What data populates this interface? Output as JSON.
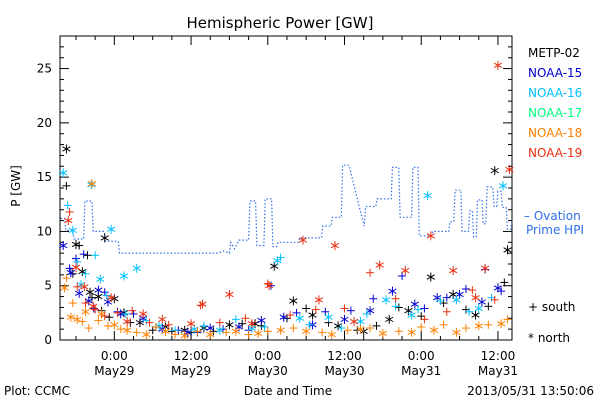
{
  "chart_data": {
    "type": "scatter",
    "title": "Hemispheric Power [GW]",
    "xlabel": "Date and Time",
    "ylabel": "P [GW]",
    "ylim": [
      0,
      28
    ],
    "xlim_hours": [
      -8.5,
      62.2
    ],
    "yticks": [
      0,
      5,
      10,
      15,
      20,
      25
    ],
    "xticks": [
      {
        "h": 0,
        "time": "0:00",
        "date": "May29"
      },
      {
        "h": 12,
        "time": "12:00",
        "date": "May29"
      },
      {
        "h": 24,
        "time": "0:00",
        "date": "May30"
      },
      {
        "h": 36,
        "time": "12:00",
        "date": "May30"
      },
      {
        "h": 48,
        "time": "0:00",
        "date": "May31"
      },
      {
        "h": 60,
        "time": "12:00",
        "date": "May31"
      }
    ],
    "grid": false,
    "legend_position": "right",
    "series": [
      {
        "name": "METP-02",
        "color": "#000000",
        "south": [
          [
            -7.5,
            14.2
          ],
          [
            -6.5,
            6.1
          ],
          [
            -5.5,
            8.7
          ],
          [
            -4.2,
            7.8
          ],
          [
            -3.5,
            3.9
          ],
          [
            -2.0,
            2.7
          ],
          [
            -0.8,
            2.1
          ],
          [
            2.5,
            1.6
          ],
          [
            6.0,
            0.9
          ],
          [
            9.0,
            0.8
          ],
          [
            12.0,
            0.7
          ],
          [
            15.5,
            0.8
          ],
          [
            20.0,
            1.5
          ],
          [
            23.0,
            1.3
          ],
          [
            27.0,
            2.0
          ],
          [
            30.0,
            2.9
          ],
          [
            33.5,
            1.6
          ],
          [
            38.0,
            0.9
          ],
          [
            41.0,
            1.3
          ],
          [
            44.5,
            3.0
          ],
          [
            48.0,
            2.2
          ],
          [
            51.5,
            3.4
          ],
          [
            55.0,
            2.8
          ],
          [
            58.5,
            3.1
          ],
          [
            61.0,
            5.3
          ]
        ],
        "north": [
          [
            -7.5,
            17.6
          ],
          [
            -6.0,
            8.8
          ],
          [
            -5.0,
            6.3
          ],
          [
            -3.8,
            4.4
          ],
          [
            -2.5,
            4.0
          ],
          [
            -1.5,
            9.4
          ],
          [
            0.0,
            3.8
          ],
          [
            1.5,
            2.5
          ],
          [
            4.0,
            1.6
          ],
          [
            8.0,
            1.2
          ],
          [
            11.0,
            0.9
          ],
          [
            14.0,
            1.1
          ],
          [
            18.0,
            1.4
          ],
          [
            22.0,
            1.5
          ],
          [
            25.0,
            6.8
          ],
          [
            28.0,
            3.6
          ],
          [
            31.0,
            2.3
          ],
          [
            35.0,
            1.3
          ],
          [
            39.0,
            0.8
          ],
          [
            43.0,
            1.9
          ],
          [
            46.0,
            2.7
          ],
          [
            49.5,
            5.8
          ],
          [
            53.0,
            4.2
          ],
          [
            56.5,
            2.3
          ],
          [
            59.5,
            15.6
          ],
          [
            61.5,
            8.3
          ]
        ]
      },
      {
        "name": "NOAA-15",
        "color": "#0000d0",
        "south": [
          [
            -7.0,
            6.6
          ],
          [
            -6.0,
            7.5
          ],
          [
            -4.8,
            7.9
          ],
          [
            -3.2,
            2.9
          ],
          [
            -1.5,
            4.4
          ],
          [
            0.5,
            2.6
          ],
          [
            3.0,
            2.4
          ],
          [
            6.5,
            1.2
          ],
          [
            10.0,
            0.9
          ],
          [
            13.0,
            0.7
          ],
          [
            17.0,
            1.0
          ],
          [
            21.0,
            0.9
          ],
          [
            24.5,
            5.0
          ],
          [
            28.5,
            2.5
          ],
          [
            33.0,
            2.6
          ],
          [
            37.0,
            2.7
          ],
          [
            40.5,
            3.8
          ],
          [
            45.0,
            5.9
          ],
          [
            48.5,
            2.9
          ],
          [
            52.0,
            3.9
          ],
          [
            55.0,
            4.7
          ],
          [
            58.0,
            6.5
          ],
          [
            60.5,
            4.5
          ]
        ],
        "north": [
          [
            -8.0,
            8.7
          ],
          [
            -6.8,
            6.2
          ],
          [
            -5.5,
            4.3
          ],
          [
            -4.0,
            3.6
          ],
          [
            -2.5,
            4.6
          ],
          [
            -1.0,
            3.5
          ],
          [
            1.0,
            2.4
          ],
          [
            4.5,
            2.0
          ],
          [
            7.5,
            1.0
          ],
          [
            11.5,
            0.7
          ],
          [
            15.0,
            1.1
          ],
          [
            19.5,
            1.2
          ],
          [
            23.0,
            1.8
          ],
          [
            26.5,
            2.1
          ],
          [
            31.0,
            1.4
          ],
          [
            36.0,
            1.9
          ],
          [
            40.0,
            2.7
          ],
          [
            43.5,
            4.5
          ],
          [
            47.0,
            3.3
          ],
          [
            50.5,
            3.9
          ],
          [
            54.0,
            4.2
          ],
          [
            57.5,
            3.5
          ],
          [
            60.0,
            4.8
          ]
        ]
      },
      {
        "name": "NOAA-16",
        "color": "#00c0ff",
        "south": [
          [
            -7.3,
            12.4
          ],
          [
            -5.8,
            7.2
          ],
          [
            -4.5,
            6.1
          ],
          [
            -3.0,
            7.8
          ],
          [
            -1.2,
            4.1
          ],
          [
            1.8,
            2.4
          ],
          [
            5.0,
            1.8
          ],
          [
            9.5,
            0.9
          ],
          [
            14.0,
            1.3
          ],
          [
            19.0,
            1.9
          ],
          [
            23.5,
            1.2
          ],
          [
            26.0,
            7.6
          ],
          [
            30.5,
            1.4
          ],
          [
            35.5,
            1.1
          ],
          [
            39.5,
            2.4
          ],
          [
            44.0,
            3.1
          ],
          [
            47.5,
            2.8
          ],
          [
            51.0,
            3.6
          ],
          [
            55.5,
            2.6
          ],
          [
            59.0,
            3.9
          ]
        ],
        "north": [
          [
            -8.0,
            15.4
          ],
          [
            -6.5,
            10.1
          ],
          [
            -5.2,
            5.1
          ],
          [
            -3.6,
            14.3
          ],
          [
            -2.2,
            5.6
          ],
          [
            -0.5,
            10.2
          ],
          [
            1.5,
            5.9
          ],
          [
            3.5,
            6.6
          ],
          [
            7.0,
            1.3
          ],
          [
            12.5,
            1.0
          ],
          [
            16.5,
            0.9
          ],
          [
            21.5,
            1.1
          ],
          [
            25.5,
            7.3
          ],
          [
            29.0,
            2.0
          ],
          [
            33.5,
            2.1
          ],
          [
            38.5,
            1.7
          ],
          [
            42.5,
            3.7
          ],
          [
            46.5,
            2.3
          ],
          [
            49.0,
            13.3
          ],
          [
            53.5,
            3.7
          ],
          [
            57.0,
            2.9
          ],
          [
            60.8,
            14.2
          ]
        ]
      },
      {
        "name": "NOAA-17",
        "color": "#00ff80",
        "south": [],
        "north": []
      },
      {
        "name": "NOAA-18",
        "color": "#ff8000",
        "south": [
          [
            -7.5,
            5.7
          ],
          [
            -6.5,
            3.4
          ],
          [
            -5.0,
            1.7
          ],
          [
            -4.0,
            1.1
          ],
          [
            -2.5,
            1.8
          ],
          [
            -1.0,
            1.3
          ],
          [
            1.0,
            1.0
          ],
          [
            3.5,
            0.7
          ],
          [
            6.5,
            1.2
          ],
          [
            9.5,
            0.5
          ],
          [
            13.0,
            0.8
          ],
          [
            17.5,
            0.7
          ],
          [
            21.0,
            0.5
          ],
          [
            24.0,
            0.8
          ],
          [
            28.0,
            1.1
          ],
          [
            32.5,
            0.7
          ],
          [
            36.5,
            0.9
          ],
          [
            40.0,
            1.1
          ],
          [
            44.5,
            0.8
          ],
          [
            48.0,
            1.2
          ],
          [
            51.5,
            1.4
          ],
          [
            55.0,
            1.1
          ],
          [
            58.5,
            1.4
          ],
          [
            61.5,
            1.9
          ]
        ],
        "north": [
          [
            -7.8,
            4.8
          ],
          [
            -6.8,
            2.1
          ],
          [
            -5.8,
            1.9
          ],
          [
            -4.5,
            2.6
          ],
          [
            -3.5,
            14.4
          ],
          [
            -2.0,
            2.4
          ],
          [
            0.0,
            1.4
          ],
          [
            2.0,
            0.9
          ],
          [
            5.0,
            0.5
          ],
          [
            8.0,
            0.8
          ],
          [
            11.0,
            0.4
          ],
          [
            15.0,
            0.5
          ],
          [
            19.0,
            0.8
          ],
          [
            22.5,
            0.6
          ],
          [
            26.0,
            0.9
          ],
          [
            30.0,
            0.8
          ],
          [
            34.0,
            0.5
          ],
          [
            38.5,
            1.0
          ],
          [
            42.0,
            0.6
          ],
          [
            46.5,
            0.7
          ],
          [
            50.0,
            0.9
          ],
          [
            53.5,
            0.7
          ],
          [
            57.0,
            1.3
          ],
          [
            60.5,
            1.5
          ]
        ]
      },
      {
        "name": "NOAA-19",
        "color": "#e83010",
        "south": [
          [
            -7.0,
            11.8
          ],
          [
            -5.8,
            4.9
          ],
          [
            -4.5,
            3.4
          ],
          [
            -3.0,
            2.8
          ],
          [
            -1.5,
            2.2
          ],
          [
            0.5,
            2.5
          ],
          [
            2.8,
            2.7
          ],
          [
            5.5,
            1.6
          ],
          [
            8.5,
            1.4
          ],
          [
            13.5,
            3.2
          ],
          [
            16.5,
            1.6
          ],
          [
            20.5,
            2.0
          ],
          [
            24.0,
            5.2
          ],
          [
            27.5,
            2.3
          ],
          [
            31.5,
            2.8
          ],
          [
            36.0,
            2.9
          ],
          [
            40.0,
            6.2
          ],
          [
            44.0,
            3.8
          ],
          [
            48.5,
            1.9
          ],
          [
            52.0,
            2.6
          ],
          [
            56.0,
            4.6
          ],
          [
            59.5,
            3.7
          ]
        ],
        "north": [
          [
            -7.2,
            11.0
          ],
          [
            -6.0,
            6.7
          ],
          [
            -4.7,
            4.9
          ],
          [
            -3.3,
            3.1
          ],
          [
            -0.5,
            3.9
          ],
          [
            2.0,
            1.7
          ],
          [
            4.5,
            2.4
          ],
          [
            7.5,
            1.9
          ],
          [
            12.0,
            1.5
          ],
          [
            13.8,
            3.3
          ],
          [
            18.0,
            4.2
          ],
          [
            21.5,
            1.5
          ],
          [
            24.2,
            5.0
          ],
          [
            29.5,
            9.2
          ],
          [
            32.0,
            3.7
          ],
          [
            34.5,
            8.7
          ],
          [
            37.5,
            1.7
          ],
          [
            41.5,
            6.9
          ],
          [
            45.5,
            6.4
          ],
          [
            49.5,
            9.6
          ],
          [
            53.0,
            6.4
          ],
          [
            56.5,
            3.9
          ],
          [
            58.0,
            6.6
          ],
          [
            60.0,
            25.3
          ],
          [
            61.8,
            15.7
          ]
        ]
      }
    ],
    "ovation": {
      "name": "Ovation Prime HPI",
      "legend_label_line1": "– Ovation",
      "legend_label_line2": "Prime HPI",
      "color": "#3070e8",
      "points": [
        [
          -8.4,
          11.2
        ],
        [
          -7.8,
          11.2
        ],
        [
          -7.6,
          10.1
        ],
        [
          -6.5,
          10.1
        ],
        [
          -6.3,
          9.3
        ],
        [
          -4.8,
          9.3
        ],
        [
          -4.6,
          12.8
        ],
        [
          -3.5,
          12.8
        ],
        [
          -3.3,
          10.0
        ],
        [
          -1.6,
          10.0
        ],
        [
          -1.4,
          9.1
        ],
        [
          0.6,
          9.1
        ],
        [
          0.8,
          8.0
        ],
        [
          13.5,
          8.0
        ],
        [
          16.2,
          8.0
        ],
        [
          17.1,
          8.2
        ],
        [
          18.0,
          8.0
        ],
        [
          18.2,
          9.0
        ],
        [
          18.8,
          8.4
        ],
        [
          19.5,
          9.2
        ],
        [
          21.0,
          9.2
        ],
        [
          21.2,
          12.8
        ],
        [
          22.1,
          12.8
        ],
        [
          22.3,
          8.7
        ],
        [
          23.4,
          8.7
        ],
        [
          23.6,
          13.0
        ],
        [
          24.6,
          13.0
        ],
        [
          24.8,
          8.6
        ],
        [
          25.4,
          8.6
        ],
        [
          25.6,
          9.0
        ],
        [
          28.8,
          9.0
        ],
        [
          29.0,
          9.4
        ],
        [
          32.4,
          9.4
        ],
        [
          32.6,
          10.5
        ],
        [
          33.9,
          10.5
        ],
        [
          34.1,
          11.3
        ],
        [
          35.5,
          11.3
        ],
        [
          35.7,
          16.1
        ],
        [
          36.7,
          16.1
        ],
        [
          38.2,
          12.5
        ],
        [
          39.1,
          10.5
        ],
        [
          39.3,
          12.3
        ],
        [
          40.9,
          12.3
        ],
        [
          41.1,
          13.0
        ],
        [
          43.3,
          13.0
        ],
        [
          43.5,
          15.9
        ],
        [
          44.5,
          15.9
        ],
        [
          44.7,
          11.3
        ],
        [
          46.5,
          11.3
        ],
        [
          46.7,
          15.9
        ],
        [
          47.5,
          15.9
        ],
        [
          47.7,
          9.6
        ],
        [
          49.6,
          9.6
        ],
        [
          49.8,
          10.0
        ],
        [
          52.3,
          10.0
        ],
        [
          52.5,
          10.9
        ],
        [
          53.1,
          10.9
        ],
        [
          53.3,
          13.8
        ],
        [
          54.2,
          13.8
        ],
        [
          54.4,
          10.0
        ],
        [
          55.4,
          10.0
        ],
        [
          55.6,
          11.9
        ],
        [
          56.0,
          11.9
        ],
        [
          56.2,
          9.5
        ],
        [
          56.6,
          9.5
        ],
        [
          56.8,
          12.9
        ],
        [
          57.5,
          12.9
        ],
        [
          57.7,
          10.7
        ],
        [
          58.1,
          10.7
        ],
        [
          58.3,
          14.1
        ],
        [
          59.2,
          14.1
        ],
        [
          59.4,
          12.3
        ],
        [
          59.8,
          12.3
        ],
        [
          60.0,
          13.7
        ],
        [
          60.5,
          13.7
        ],
        [
          60.7,
          12.2
        ],
        [
          61.3,
          12.2
        ],
        [
          61.5,
          10.2
        ],
        [
          62.0,
          10.2
        ],
        [
          62.2,
          11.0
        ]
      ]
    },
    "symbol_legend": {
      "south": "+ south",
      "north": "* north"
    }
  },
  "footer": {
    "plot_credit": "Plot: CCMC",
    "timestamp": "2013/05/31  13:50:06"
  }
}
